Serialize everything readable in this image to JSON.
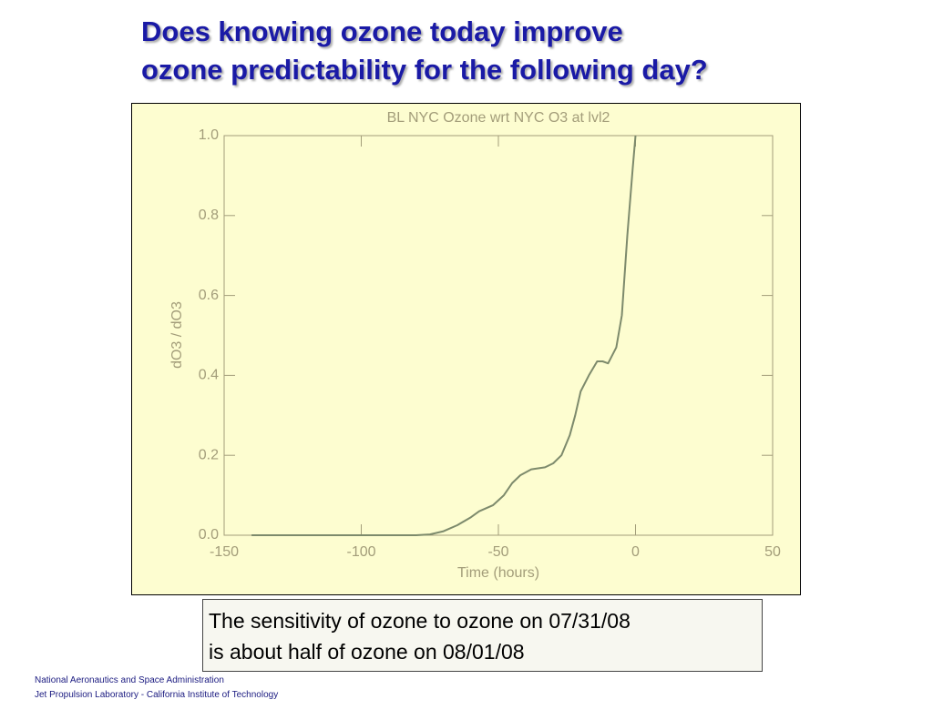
{
  "title": [
    "Does knowing ozone today improve",
    "ozone predictability for the following day?"
  ],
  "chart_data": {
    "type": "line",
    "title": "BL NYC Ozone wrt NYC O3 at lvl2",
    "x_label": "Time (hours)",
    "y_label": "dO3 / dO3",
    "x": [
      -140,
      -120,
      -100,
      -80,
      -75,
      -70,
      -65,
      -60,
      -57,
      -52,
      -48,
      -45,
      -42,
      -38,
      -33,
      -30,
      -27,
      -24,
      -22,
      -20,
      -17,
      -14,
      -12,
      -10,
      -7,
      -5,
      -3,
      -1,
      0
    ],
    "values": [
      0,
      0,
      0,
      0,
      0.002,
      0.01,
      0.025,
      0.045,
      0.06,
      0.075,
      0.1,
      0.13,
      0.15,
      0.165,
      0.17,
      0.18,
      0.2,
      0.25,
      0.3,
      0.36,
      0.4,
      0.435,
      0.435,
      0.43,
      0.47,
      0.55,
      0.75,
      0.92,
      1.0
    ],
    "color": "#7d8a6c",
    "xlim": [
      -150,
      50
    ],
    "xticks": [
      -150,
      -100,
      -50,
      0,
      50
    ],
    "ylim": [
      0,
      1
    ],
    "yticks": [
      {
        "value": 0,
        "label": "0.0"
      },
      0.2,
      0.4,
      0.6,
      0.8,
      {
        "value": 1,
        "label": "1.0"
      }
    ]
  },
  "note": [
    "The sensitivity of ozone to ozone on 07/31/08",
    "is about half of ozone on 08/01/08"
  ],
  "footer": [
    "National Aeronautics and Space Administration",
    "Jet Propulsion Laboratory - California Institute of Technology"
  ]
}
